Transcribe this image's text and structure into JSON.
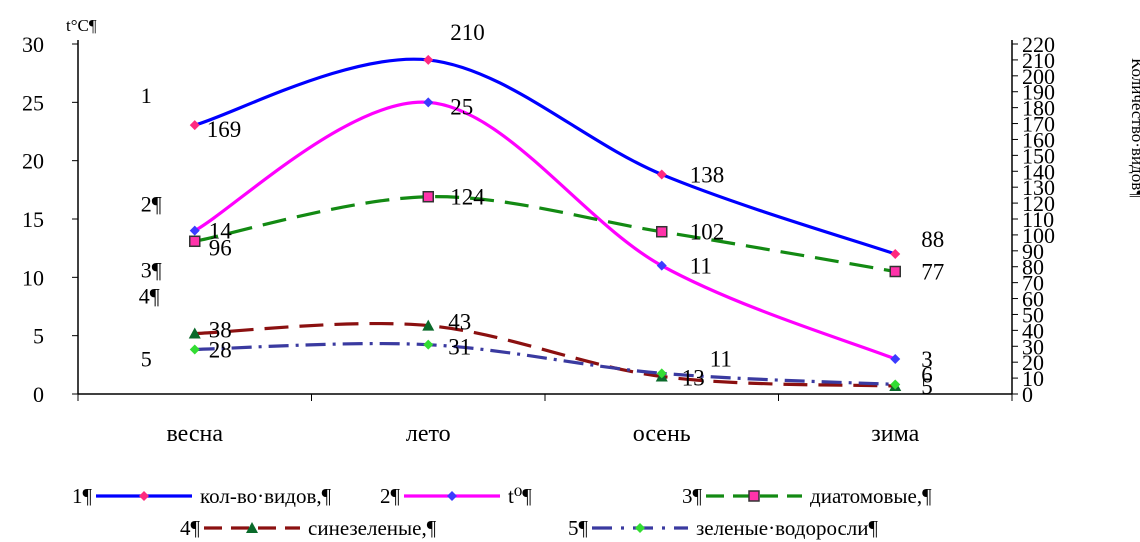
{
  "chart_data": {
    "type": "line",
    "categories": [
      "весна",
      "лето",
      "осень",
      "зима"
    ],
    "ylabel_left": "t°C¶",
    "ylabel_right": "Количество·видов¶",
    "ylim_left": [
      0,
      30
    ],
    "yticks_left": [
      0,
      5,
      10,
      15,
      20,
      25,
      30
    ],
    "ylim_right": [
      0,
      220
    ],
    "yticks_right": [
      0,
      10,
      20,
      30,
      40,
      50,
      60,
      70,
      80,
      90,
      100,
      110,
      120,
      130,
      140,
      150,
      160,
      170,
      180,
      190,
      200,
      210,
      220
    ],
    "series": [
      {
        "number": "1",
        "legend_number": "1¶",
        "name": "кол-во·видов,¶",
        "axis": "right",
        "values": [
          169,
          210,
          138,
          88
        ],
        "labels": [
          "169",
          "210",
          "138",
          "88"
        ],
        "color": "#0000ff",
        "marker_color": "#ff2a7f",
        "dash": "solid"
      },
      {
        "number": "2¶",
        "legend_number": "2¶",
        "name": "t⁰¶",
        "axis": "left",
        "values": [
          14,
          25,
          11,
          3
        ],
        "labels": [
          "14",
          "25",
          "11",
          "3"
        ],
        "color": "#ff00ff",
        "marker_color": "#3b3bff",
        "dash": "solid"
      },
      {
        "number": "3¶",
        "legend_number": "3¶",
        "name": "диатомовые,¶",
        "axis": "right",
        "values": [
          96,
          124,
          102,
          77
        ],
        "labels": [
          "96",
          "124",
          "102",
          "77"
        ],
        "color": "#138a13",
        "marker_color": "#ff33aa",
        "dash": "long"
      },
      {
        "number": "4¶",
        "legend_number": "4¶",
        "name": "синезеленые,¶",
        "axis": "right",
        "values": [
          38,
          43,
          11,
          5
        ],
        "labels": [
          "38",
          "43",
          "11",
          "5"
        ],
        "color": "#8b1010",
        "marker_color": "#0a6a2a",
        "dash": "long"
      },
      {
        "number": "5",
        "legend_number": "5¶",
        "name": "зеленые·водоросли¶",
        "axis": "right",
        "values": [
          28,
          31,
          13,
          6
        ],
        "labels": [
          "28",
          "31",
          "13",
          "6"
        ],
        "color": "#3a3aa0",
        "marker_color": "#33dd33",
        "dash": "dashdot"
      }
    ],
    "legend_position": "bottom",
    "grid": false
  }
}
